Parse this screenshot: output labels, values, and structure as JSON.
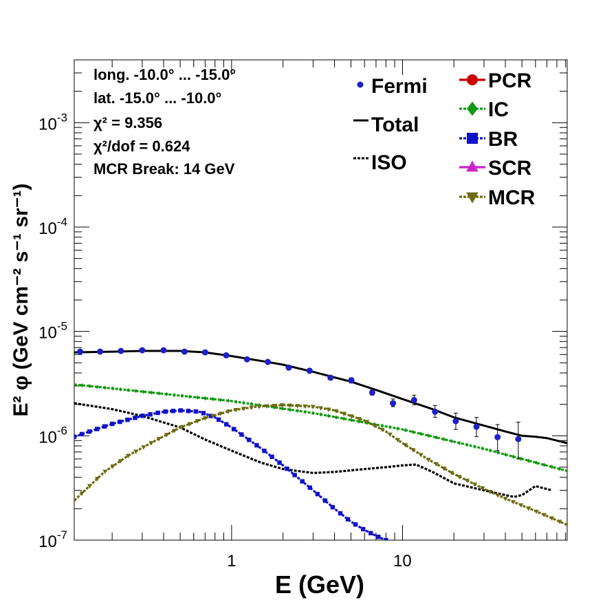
{
  "chart_data": {
    "type": "line",
    "title": "",
    "xlabel": "E (GeV)",
    "ylabel": "E² φ (GeV cm⁻² s⁻¹ sr⁻¹)",
    "xscale": "log",
    "yscale": "log",
    "xlim": [
      0.12,
      92
    ],
    "ylim": [
      1e-07,
      0.004
    ],
    "x_ticks": [
      {
        "value": 1,
        "label": "1"
      },
      {
        "value": 10,
        "label": "10"
      }
    ],
    "y_ticks": [
      {
        "value": 1e-07,
        "base": "10",
        "exp": "-7"
      },
      {
        "value": 1e-06,
        "base": "10",
        "exp": "-6"
      },
      {
        "value": 1e-05,
        "base": "10",
        "exp": "-5"
      },
      {
        "value": 0.0001,
        "base": "10",
        "exp": "-4"
      },
      {
        "value": 0.001,
        "base": "10",
        "exp": "-3"
      }
    ],
    "info_lines": [
      "long. -10.0° ... -15.0°",
      "lat. -15.0° ... -10.0°",
      "χ² = 9.356",
      "χ²/dof = 0.624",
      "MCR Break: 14 GeV"
    ],
    "fermi": {
      "name": "Fermi",
      "color": "#1f1fc8",
      "points": [
        {
          "x": 0.13,
          "y": 6.4e-06,
          "err_lo": 6.2e-06,
          "err_hi": 6.6e-06
        },
        {
          "x": 0.17,
          "y": 6.4e-06,
          "err_lo": 6.2e-06,
          "err_hi": 6.6e-06
        },
        {
          "x": 0.225,
          "y": 6.5e-06,
          "err_lo": 6.3e-06,
          "err_hi": 6.7e-06
        },
        {
          "x": 0.3,
          "y": 6.6e-06,
          "err_lo": 6.4e-06,
          "err_hi": 6.8e-06
        },
        {
          "x": 0.4,
          "y": 6.6e-06,
          "err_lo": 6.4e-06,
          "err_hi": 6.8e-06
        },
        {
          "x": 0.53,
          "y": 6.4e-06,
          "err_lo": 6.2e-06,
          "err_hi": 6.6e-06
        },
        {
          "x": 0.7,
          "y": 6.3e-06,
          "err_lo": 6.1e-06,
          "err_hi": 6.5e-06
        },
        {
          "x": 0.93,
          "y": 5.9e-06,
          "err_lo": 5.7e-06,
          "err_hi": 6.1e-06
        },
        {
          "x": 1.23,
          "y": 5.4e-06,
          "err_lo": 5.2e-06,
          "err_hi": 5.6e-06
        },
        {
          "x": 1.63,
          "y": 5.1e-06,
          "err_lo": 4.9e-06,
          "err_hi": 5.3e-06
        },
        {
          "x": 2.16,
          "y": 4.5e-06,
          "err_lo": 4.3e-06,
          "err_hi": 4.7e-06
        },
        {
          "x": 2.86,
          "y": 4.2e-06,
          "err_lo": 4e-06,
          "err_hi": 4.4e-06
        },
        {
          "x": 3.79,
          "y": 3.6e-06,
          "err_lo": 3.45e-06,
          "err_hi": 3.75e-06
        },
        {
          "x": 5.02,
          "y": 3.4e-06,
          "err_lo": 3.2e-06,
          "err_hi": 3.6e-06
        },
        {
          "x": 6.65,
          "y": 2.6e-06,
          "err_lo": 2.45e-06,
          "err_hi": 2.75e-06
        },
        {
          "x": 8.8,
          "y": 2.05e-06,
          "err_lo": 1.9e-06,
          "err_hi": 2.25e-06
        },
        {
          "x": 11.7,
          "y": 2.2e-06,
          "err_lo": 1.98e-06,
          "err_hi": 2.45e-06
        },
        {
          "x": 15.5,
          "y": 1.7e-06,
          "err_lo": 1.5e-06,
          "err_hi": 1.95e-06
        },
        {
          "x": 20.5,
          "y": 1.38e-06,
          "err_lo": 1.15e-06,
          "err_hi": 1.65e-06
        },
        {
          "x": 27.1,
          "y": 1.22e-06,
          "err_lo": 9.8e-07,
          "err_hi": 1.5e-06
        },
        {
          "x": 36,
          "y": 9.7e-07,
          "err_lo": 7.2e-07,
          "err_hi": 1.28e-06
        },
        {
          "x": 47.6,
          "y": 9.3e-07,
          "err_lo": 6e-07,
          "err_hi": 1.35e-06
        }
      ]
    },
    "series": [
      {
        "name": "Total",
        "key": "total",
        "color": "#000000",
        "style": "solid",
        "marker": "none",
        "x": [
          0.12,
          0.2,
          0.3,
          0.5,
          0.7,
          1.0,
          1.5,
          2.0,
          3.0,
          5.0,
          7.0,
          10,
          15,
          20,
          30,
          40,
          50,
          60,
          70,
          80,
          92
        ],
        "y": [
          6.3e-06,
          6.4e-06,
          6.5e-06,
          6.5e-06,
          6.3e-06,
          5.8e-06,
          5.2e-06,
          4.8e-06,
          4.1e-06,
          3.3e-06,
          2.75e-06,
          2.25e-06,
          1.8e-06,
          1.5e-06,
          1.25e-06,
          1.1e-06,
          1e-06,
          9.8e-07,
          9.5e-07,
          9e-07,
          8.5e-07
        ]
      },
      {
        "name": "ISO",
        "key": "iso",
        "color": "#000000",
        "style": "dashed",
        "marker": "none",
        "x": [
          0.12,
          0.2,
          0.3,
          0.5,
          0.7,
          1.0,
          1.5,
          2.0,
          3.0,
          4.0,
          6.0,
          8.0,
          10,
          12,
          15,
          20,
          30,
          40,
          45,
          50,
          60,
          75
        ],
        "y": [
          2.05e-06,
          1.8e-06,
          1.55e-06,
          1.2e-06,
          9.2e-07,
          7.2e-07,
          5.5e-07,
          4.8e-07,
          4.4e-07,
          4.5e-07,
          4.8e-07,
          5e-07,
          5.2e-07,
          5.3e-07,
          4.5e-07,
          3.5e-07,
          3e-07,
          2.7e-07,
          2.6e-07,
          2.7e-07,
          3.3e-07,
          3e-07
        ]
      },
      {
        "name": "PCR",
        "key": "pcr",
        "color": "#cc0000",
        "style": "solid",
        "marker": "circle",
        "x": [],
        "y": []
      },
      {
        "name": "IC",
        "key": "ic",
        "color": "#119911",
        "style": "dashed",
        "marker": "diamond",
        "x": [
          0.12,
          0.3,
          1.0,
          3.0,
          10,
          30,
          92
        ],
        "y": [
          3.1e-06,
          2.65e-06,
          2.15e-06,
          1.65e-06,
          1.15e-06,
          7.5e-07,
          4.6e-07
        ]
      },
      {
        "name": "BR",
        "key": "br",
        "color": "#1010c8",
        "style": "dashed",
        "marker": "square",
        "x": [
          0.12,
          0.2,
          0.3,
          0.4,
          0.5,
          0.65,
          0.8,
          1.0,
          1.5,
          2.0,
          3.0,
          4.0,
          5.0,
          6.0,
          7.0,
          8.0
        ],
        "y": [
          9.8e-07,
          1.3e-06,
          1.55e-06,
          1.7e-06,
          1.75e-06,
          1.7e-06,
          1.5e-06,
          1.2e-06,
          7.5e-07,
          5.2e-07,
          3e-07,
          2e-07,
          1.5e-07,
          1.25e-07,
          1.1e-07,
          1e-07
        ]
      },
      {
        "name": "SCR",
        "key": "scr",
        "color": "#cc22cc",
        "style": "solid",
        "marker": "triangle-up",
        "x": [],
        "y": []
      },
      {
        "name": "MCR",
        "key": "mcr",
        "color": "#6b6b10",
        "style": "dashed",
        "marker": "triangle-down",
        "x": [
          0.12,
          0.18,
          0.25,
          0.35,
          0.5,
          0.7,
          1.0,
          1.4,
          2.0,
          3.0,
          4.0,
          6.0,
          8.0,
          10,
          14,
          20,
          30,
          40,
          60,
          92
        ],
        "y": [
          2.4e-07,
          4.5e-07,
          6.5e-07,
          8.8e-07,
          1.2e-06,
          1.48e-06,
          1.75e-06,
          1.9e-06,
          1.97e-06,
          1.9e-06,
          1.75e-06,
          1.4e-06,
          1.1e-06,
          8.5e-07,
          6e-07,
          4.3e-07,
          3.1e-07,
          2.5e-07,
          1.9e-07,
          1.4e-07
        ]
      }
    ]
  }
}
